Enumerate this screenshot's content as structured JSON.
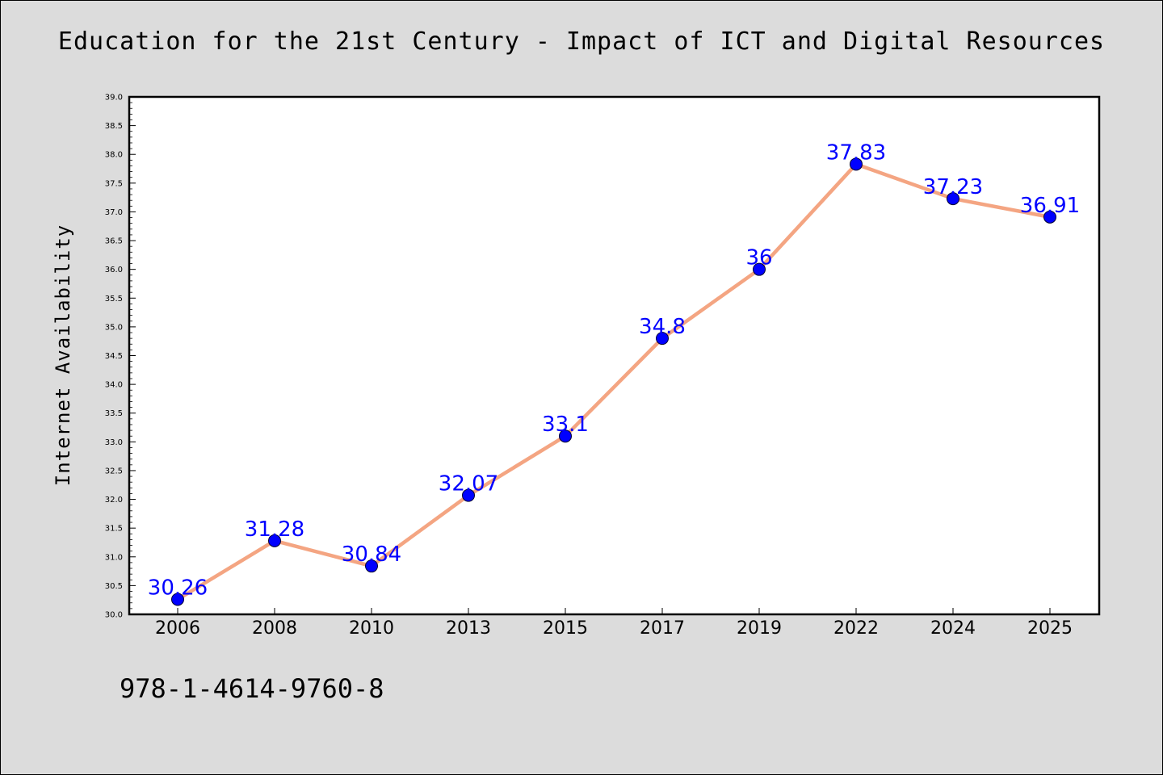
{
  "title": "Education for the 21st Century - Impact of ICT and Digital Resources",
  "footer": "978-1-4614-9760-8",
  "colors": {
    "background": "#dcdcdc",
    "plot_background": "#ffffff",
    "line": "#f4a582",
    "marker": "#0000ff",
    "data_label": "#0000ff"
  },
  "chart_data": {
    "type": "line",
    "title": "Education for the 21st Century - Impact of ICT and Digital Resources",
    "xlabel": "",
    "ylabel": "Internet Availability",
    "categories": [
      "2006",
      "2008",
      "2010",
      "2013",
      "2015",
      "2017",
      "2019",
      "2022",
      "2024",
      "2025"
    ],
    "series": [
      {
        "values": [
          30.26,
          31.28,
          30.84,
          32.07,
          33.1,
          34.8,
          36,
          37.83,
          37.23,
          36.91
        ],
        "labels": [
          "30.26",
          "31.28",
          "30.84",
          "32.07",
          "33.1",
          "34.8",
          "36",
          "37.83",
          "37.23",
          "36.91"
        ]
      }
    ],
    "ylim": [
      30.0,
      39.0
    ],
    "yticks": [
      "30.0",
      "30.5",
      "31.0",
      "31.5",
      "32.0",
      "32.5",
      "33.0",
      "33.5",
      "34.0",
      "34.5",
      "35.0",
      "35.5",
      "36.0",
      "36.5",
      "37.0",
      "37.5",
      "38.0",
      "38.5",
      "39.0"
    ],
    "grid": false,
    "legend": "none",
    "marker": "circle"
  }
}
